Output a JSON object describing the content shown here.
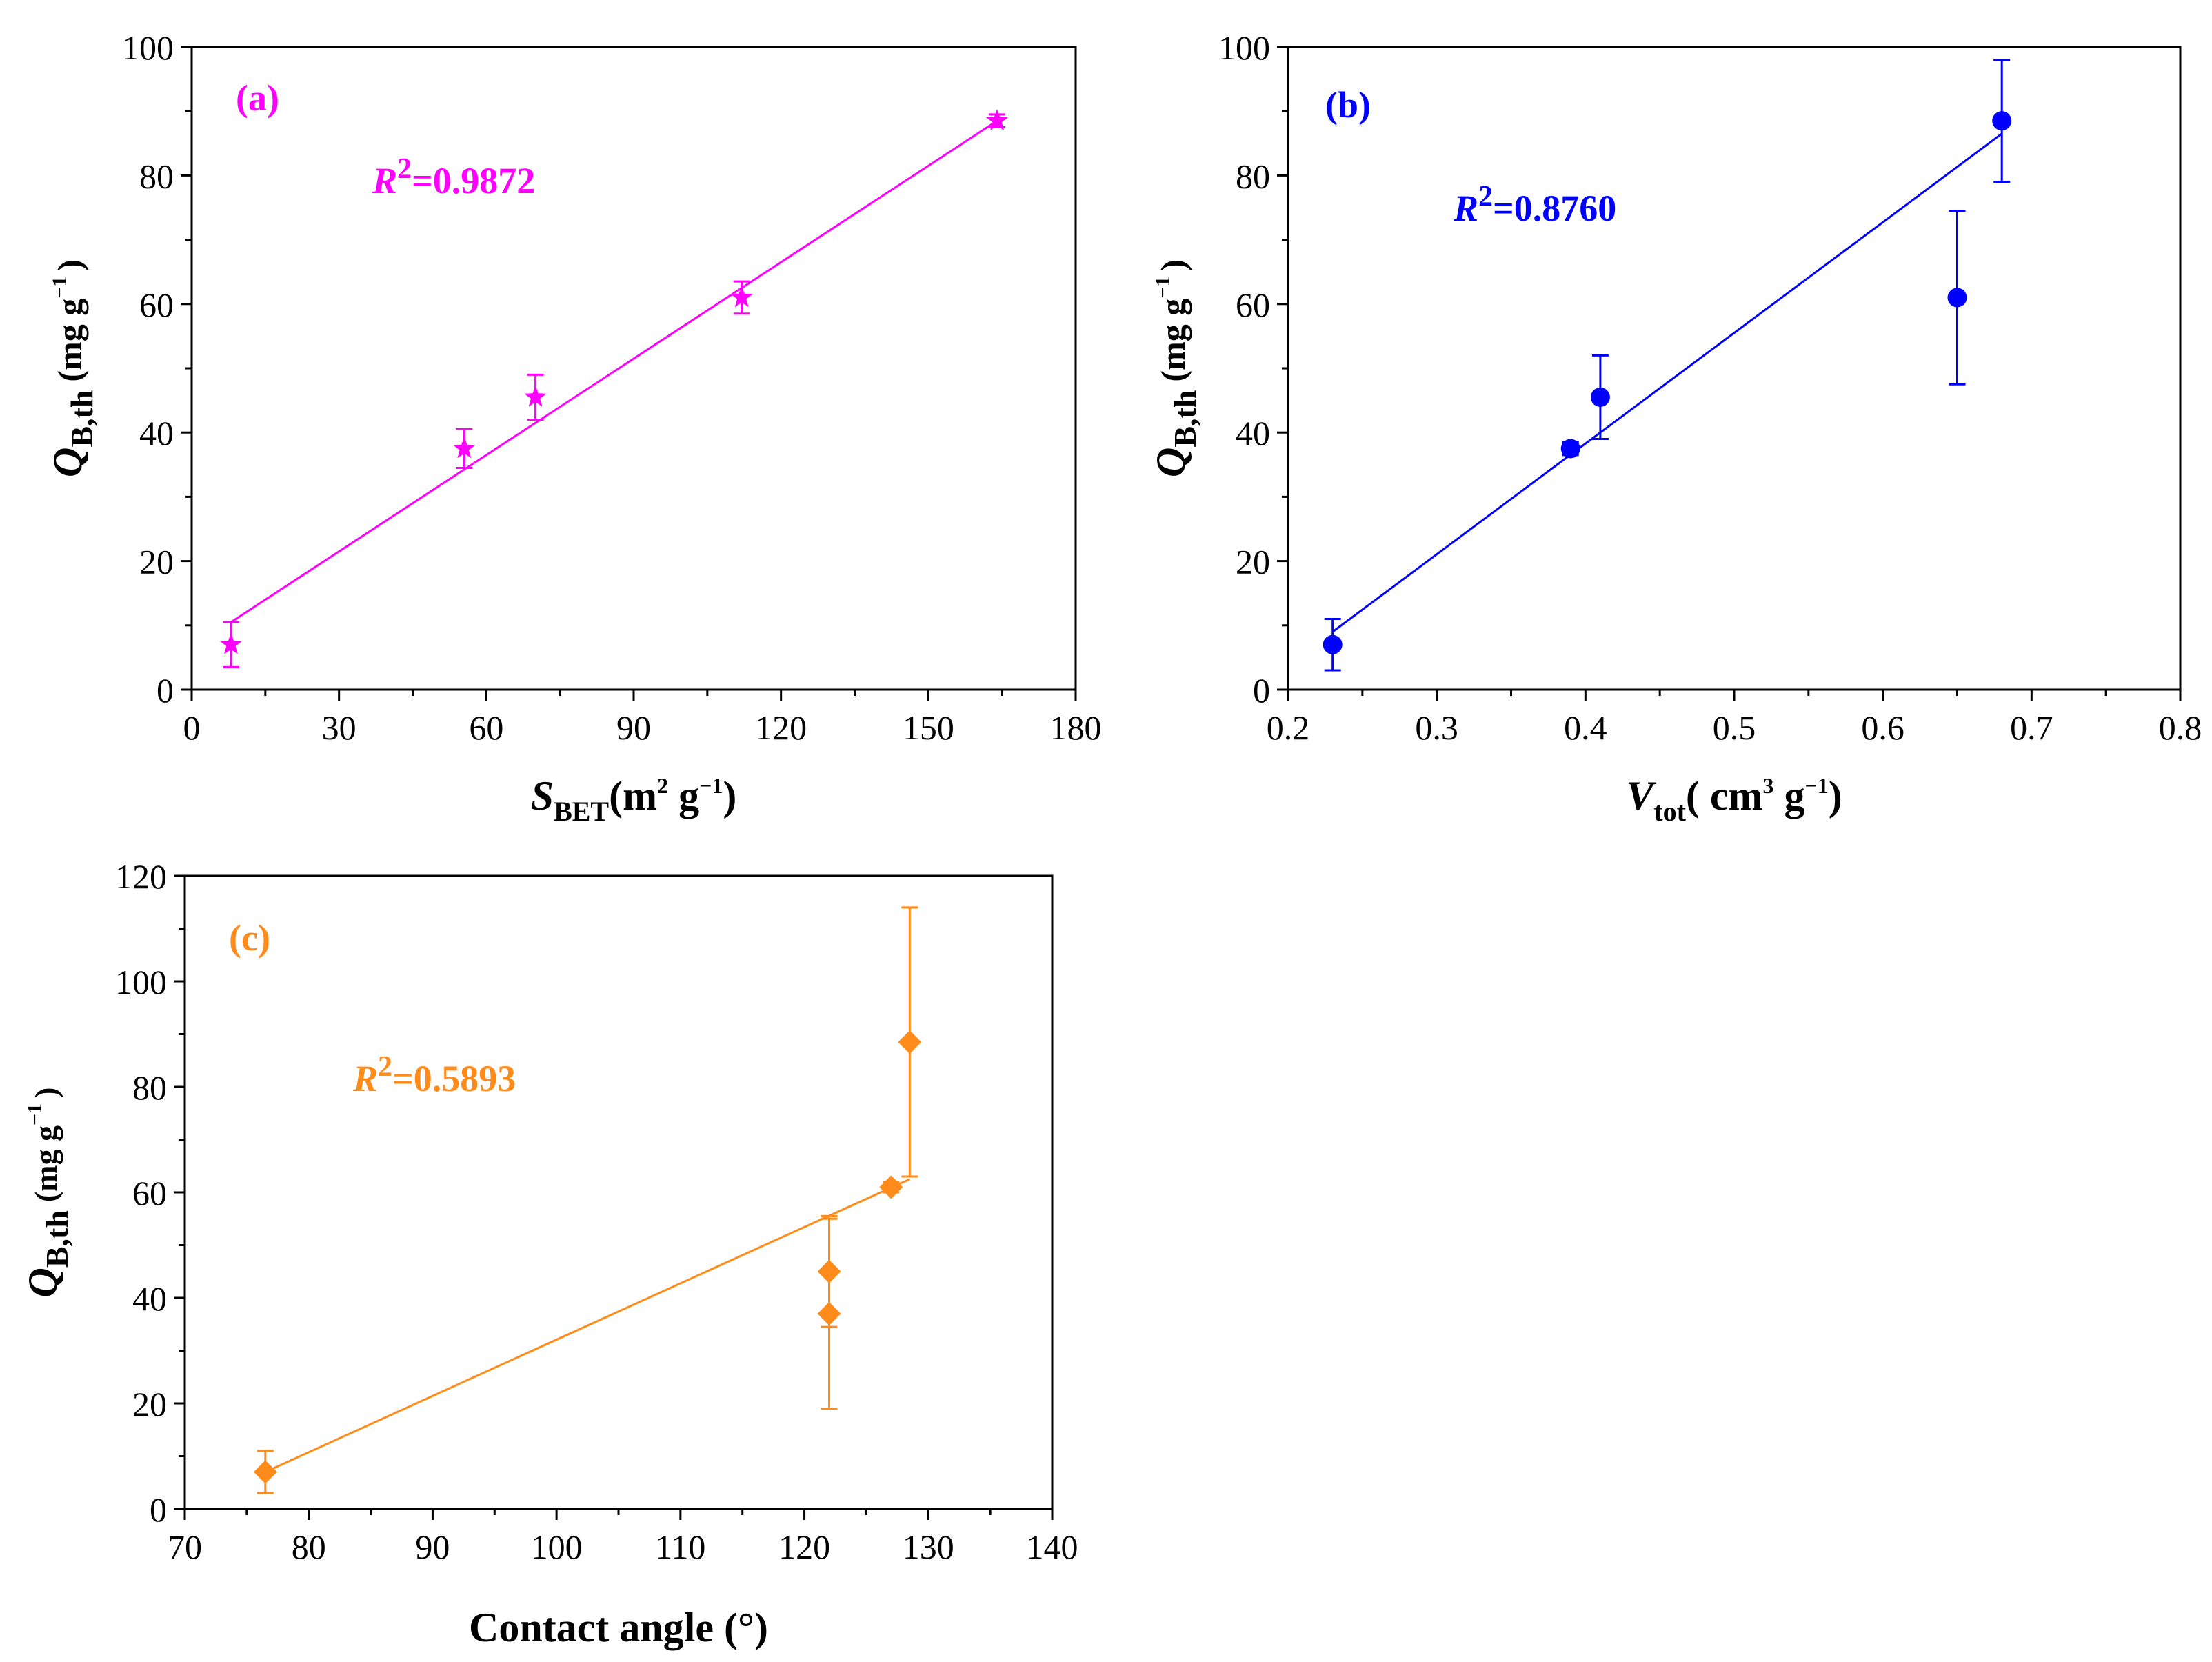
{
  "chart_data": [
    {
      "type": "scatter",
      "panel_label": "(a)",
      "color": "#ff00ff",
      "marker": "star",
      "ylabel": {
        "symbol": "Q",
        "sub": "B,th",
        "units_pre": "(mg g",
        "sup": "−1",
        "units_post": ")"
      },
      "xlabel": {
        "symbol": "S",
        "sub": "BET",
        "units_pre": "(m",
        "sup1": "2",
        "units_mid": " g",
        "sup2": "−1",
        "units_post": ")"
      },
      "r2_symbol": "R",
      "r2_sup": "2",
      "r2_value": "=0.9872",
      "xlim": [
        0,
        180
      ],
      "ylim": [
        0,
        100
      ],
      "xticks": [
        "0",
        "30",
        "60",
        "90",
        "120",
        "150",
        "180"
      ],
      "yticks": [
        "0",
        "20",
        "40",
        "60",
        "80",
        "100"
      ],
      "x": [
        8,
        55.5,
        70,
        112,
        164
      ],
      "y": [
        7,
        37.5,
        45.5,
        61,
        88.5
      ],
      "err": [
        3.5,
        3,
        3.5,
        2.5,
        1
      ],
      "fit": {
        "x": [
          8,
          164
        ],
        "y": [
          10.5,
          88.5
        ]
      }
    },
    {
      "type": "scatter",
      "panel_label": "(b)",
      "color": "#0000ff",
      "marker": "circle",
      "ylabel": {
        "symbol": "Q",
        "sub": "B,th",
        "units_pre": "(mg g",
        "sup": "−1",
        "units_post": ")"
      },
      "xlabel": {
        "symbol": "V",
        "sub": "tot",
        "units_pre": "( cm",
        "sup1": "3",
        "units_mid": " g",
        "sup2": "−1",
        "units_post": ")"
      },
      "r2_symbol": "R",
      "r2_sup": "2",
      "r2_value": "=0.8760",
      "xlim": [
        0.2,
        0.8
      ],
      "ylim": [
        0,
        100
      ],
      "xticks": [
        "0.2",
        "0.3",
        "0.4",
        "0.5",
        "0.6",
        "0.7",
        "0.8"
      ],
      "yticks": [
        "0",
        "20",
        "40",
        "60",
        "80",
        "100"
      ],
      "x": [
        0.23,
        0.39,
        0.41,
        0.65,
        0.68
      ],
      "y": [
        7,
        37.5,
        45.5,
        61,
        88.5
      ],
      "err": [
        4,
        1,
        6.5,
        13.5,
        9.5
      ],
      "fit": {
        "x": [
          0.23,
          0.68
        ],
        "y": [
          9,
          86.5
        ]
      }
    },
    {
      "type": "scatter",
      "panel_label": "(c)",
      "color": "#ff8c1a",
      "marker": "diamond",
      "ylabel": {
        "symbol": "Q",
        "sub": "B,th",
        "units_pre": "(mg g",
        "sup": "−1",
        "units_post": ")"
      },
      "xlabel": {
        "text": "Contact angle (°)"
      },
      "r2_symbol": "R",
      "r2_sup": "2",
      "r2_value": "=0.5893",
      "xlim": [
        70,
        140
      ],
      "ylim": [
        0,
        120
      ],
      "xticks": [
        "70",
        "80",
        "90",
        "100",
        "110",
        "120",
        "130",
        "140"
      ],
      "yticks": [
        "0",
        "20",
        "40",
        "60",
        "80",
        "100",
        "120"
      ],
      "x": [
        76.5,
        122,
        122,
        127,
        128.5
      ],
      "y": [
        7,
        37,
        45,
        61,
        88.5
      ],
      "err": [
        4,
        18,
        10.5,
        1,
        25.5
      ],
      "fit": {
        "x": [
          76.5,
          128.5
        ],
        "y": [
          7,
          62.5
        ]
      }
    }
  ]
}
